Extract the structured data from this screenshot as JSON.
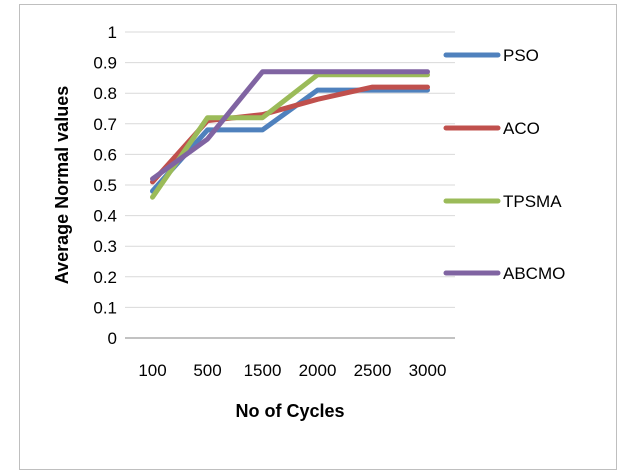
{
  "chart_data": {
    "type": "line",
    "categories": [
      "100",
      "500",
      "1500",
      "2000",
      "2500",
      "3000"
    ],
    "xlabel": "No of Cycles",
    "ylabel": "Average Normal values",
    "ylim": [
      0,
      1
    ],
    "yticks": [
      "0",
      "0.1",
      "0.2",
      "0.3",
      "0.4",
      "0.5",
      "0.6",
      "0.7",
      "0.8",
      "0.9",
      "1"
    ],
    "grid": true,
    "legend_position": "right",
    "series": [
      {
        "name": "PSO",
        "color": "#4f81bd",
        "values": [
          0.48,
          0.68,
          0.68,
          0.81,
          0.81,
          0.81
        ]
      },
      {
        "name": "ACO",
        "color": "#c0504d",
        "values": [
          0.51,
          0.71,
          0.73,
          0.78,
          0.82,
          0.82
        ]
      },
      {
        "name": "TPSMA",
        "color": "#9bbb59",
        "values": [
          0.46,
          0.72,
          0.72,
          0.86,
          0.86,
          0.86
        ]
      },
      {
        "name": "ABCMO",
        "color": "#8064a2",
        "values": [
          0.52,
          0.65,
          0.87,
          0.87,
          0.87,
          0.87
        ]
      }
    ]
  }
}
